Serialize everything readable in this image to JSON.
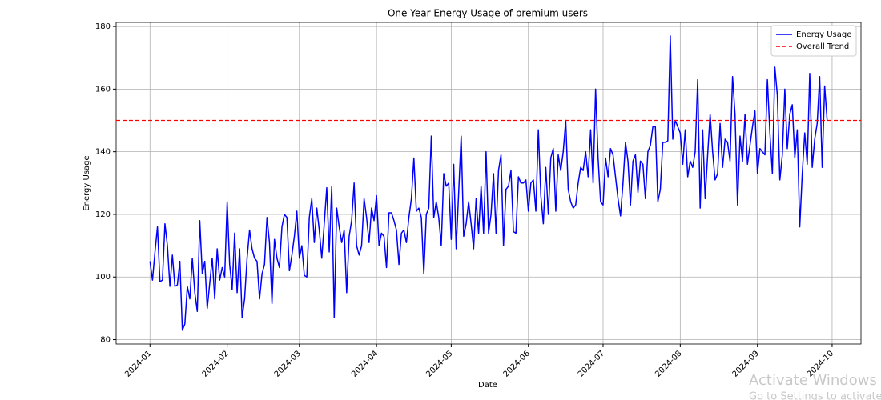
{
  "chart_data": {
    "type": "line",
    "title": "One Year Energy Usage of premium users",
    "x_label": "Date",
    "y_label": "Energy Usage",
    "categories": [
      "2024-01",
      null,
      null,
      null,
      null,
      null,
      null,
      null,
      null,
      null,
      null,
      null,
      null,
      null,
      null,
      null,
      null,
      null,
      null,
      null,
      null,
      null,
      null,
      null,
      null,
      null,
      null,
      null,
      null,
      null,
      null,
      "2024-02",
      null,
      null,
      null,
      null,
      null,
      null,
      null,
      null,
      null,
      null,
      null,
      null,
      null,
      null,
      null,
      null,
      null,
      null,
      null,
      null,
      null,
      null,
      null,
      null,
      null,
      null,
      null,
      null,
      "2024-03",
      null,
      null,
      null,
      null,
      null,
      null,
      null,
      null,
      null,
      null,
      null,
      null,
      null,
      null,
      null,
      null,
      null,
      null,
      null,
      null,
      null,
      null,
      null,
      null,
      null,
      null,
      null,
      null,
      null,
      null,
      "2024-04",
      null,
      null,
      null,
      null,
      null,
      null,
      null,
      null,
      null,
      null,
      null,
      null,
      null,
      null,
      null,
      null,
      null,
      null,
      null,
      null,
      null,
      null,
      null,
      null,
      null,
      null,
      null,
      null,
      null,
      "2024-05",
      null,
      null,
      null,
      null,
      null,
      null,
      null,
      null,
      null,
      null,
      null,
      null,
      null,
      null,
      null,
      null,
      null,
      null,
      null,
      null,
      null,
      null,
      null,
      null,
      null,
      null,
      null,
      null,
      null,
      null,
      "2024-06",
      null,
      null,
      null,
      null,
      null,
      null,
      null,
      null,
      null,
      null,
      null,
      null,
      null,
      null,
      null,
      null,
      null,
      null,
      null,
      null,
      null,
      null,
      null,
      null,
      null,
      null,
      null,
      null,
      null,
      "2024-07",
      null,
      null,
      null,
      null,
      null,
      null,
      null,
      null,
      null,
      null,
      null,
      null,
      null,
      null,
      null,
      null,
      null,
      null,
      null,
      null,
      null,
      null,
      null,
      null,
      null,
      null,
      null,
      null,
      null,
      null,
      "2024-08",
      null,
      null,
      null,
      null,
      null,
      null,
      null,
      null,
      null,
      null,
      null,
      null,
      null,
      null,
      null,
      null,
      null,
      null,
      null,
      null,
      null,
      null,
      null,
      null,
      null,
      null,
      null,
      null,
      null,
      null,
      "2024-09",
      null,
      null,
      null,
      null,
      null,
      null,
      null,
      null,
      null,
      null,
      null,
      null,
      null,
      null,
      null,
      null,
      null,
      null,
      null,
      null,
      null,
      null,
      null,
      null,
      null,
      null,
      null,
      null,
      null,
      "2024-10"
    ],
    "series": [
      {
        "name": "Energy Usage",
        "color": "#0000ff",
        "values": [
          105,
          99,
          108,
          116,
          98.5,
          99,
          117,
          110,
          97,
          107,
          97,
          97.5,
          105,
          83,
          85,
          97,
          93,
          106,
          95,
          89,
          118,
          101,
          105,
          90,
          98,
          106,
          93,
          109,
          99,
          103,
          100,
          124,
          104,
          96,
          114,
          95,
          109,
          87,
          93,
          106,
          115,
          109,
          106,
          105,
          93,
          101,
          104,
          119,
          111,
          91.5,
          112,
          106,
          103,
          116,
          120,
          119,
          102,
          107,
          113,
          121,
          106,
          110,
          100.5,
          100,
          119,
          125,
          111,
          122,
          115,
          106,
          117,
          128.5,
          108,
          129,
          87,
          122,
          116,
          111,
          115,
          95,
          113,
          118,
          130,
          110,
          107,
          110,
          125,
          119,
          111,
          122,
          118,
          126,
          110,
          114,
          113,
          103,
          120.5,
          120.5,
          118,
          115,
          104,
          114,
          115,
          111,
          119,
          125,
          138,
          121,
          122,
          119,
          101,
          120,
          122,
          145,
          119,
          124,
          119,
          110,
          133,
          129,
          130,
          112,
          136,
          109,
          127,
          145,
          113,
          117,
          124,
          117,
          109,
          125,
          114,
          129,
          114,
          140,
          114,
          120,
          133,
          114,
          134,
          139,
          110,
          128,
          129,
          134,
          114.5,
          114,
          132,
          130,
          130,
          131,
          121,
          130,
          131,
          121,
          147,
          126,
          117,
          135,
          120,
          138,
          141,
          121,
          139,
          134,
          140,
          150,
          128,
          124,
          122,
          123,
          130,
          135,
          134,
          140,
          132,
          147,
          130,
          160,
          138,
          124,
          123,
          138,
          132,
          141,
          139,
          132,
          125,
          119.5,
          130,
          143,
          137,
          123,
          137,
          139,
          127,
          137,
          136,
          125,
          140,
          142,
          148,
          148,
          124,
          128,
          143,
          143,
          143.5,
          177,
          144,
          150,
          148,
          146,
          136,
          147,
          132,
          137,
          135,
          140,
          163,
          122,
          147,
          125,
          139,
          152,
          140,
          131,
          133,
          149,
          135,
          144,
          143,
          137,
          164,
          152,
          123,
          145,
          137,
          152,
          136,
          142,
          148,
          153,
          133,
          141,
          140,
          139,
          163,
          146,
          133,
          167,
          158,
          131,
          139,
          160,
          141,
          152,
          155,
          138,
          147,
          116,
          133,
          146,
          136,
          165,
          135,
          144,
          149,
          164,
          135,
          161,
          150,
          null,
          null
        ]
      }
    ],
    "reference_lines": [
      {
        "name": "Overall Trend",
        "color": "#ff0000",
        "value": 150,
        "dashed": true
      }
    ],
    "ylim": [
      78.6,
      181.3
    ],
    "yticks": [
      80,
      100,
      120,
      140,
      160,
      180
    ],
    "grid": true,
    "legend": "upper-right"
  },
  "overlay": {
    "line1": "Activate Windows",
    "line2": "Go to Settings to activate"
  }
}
